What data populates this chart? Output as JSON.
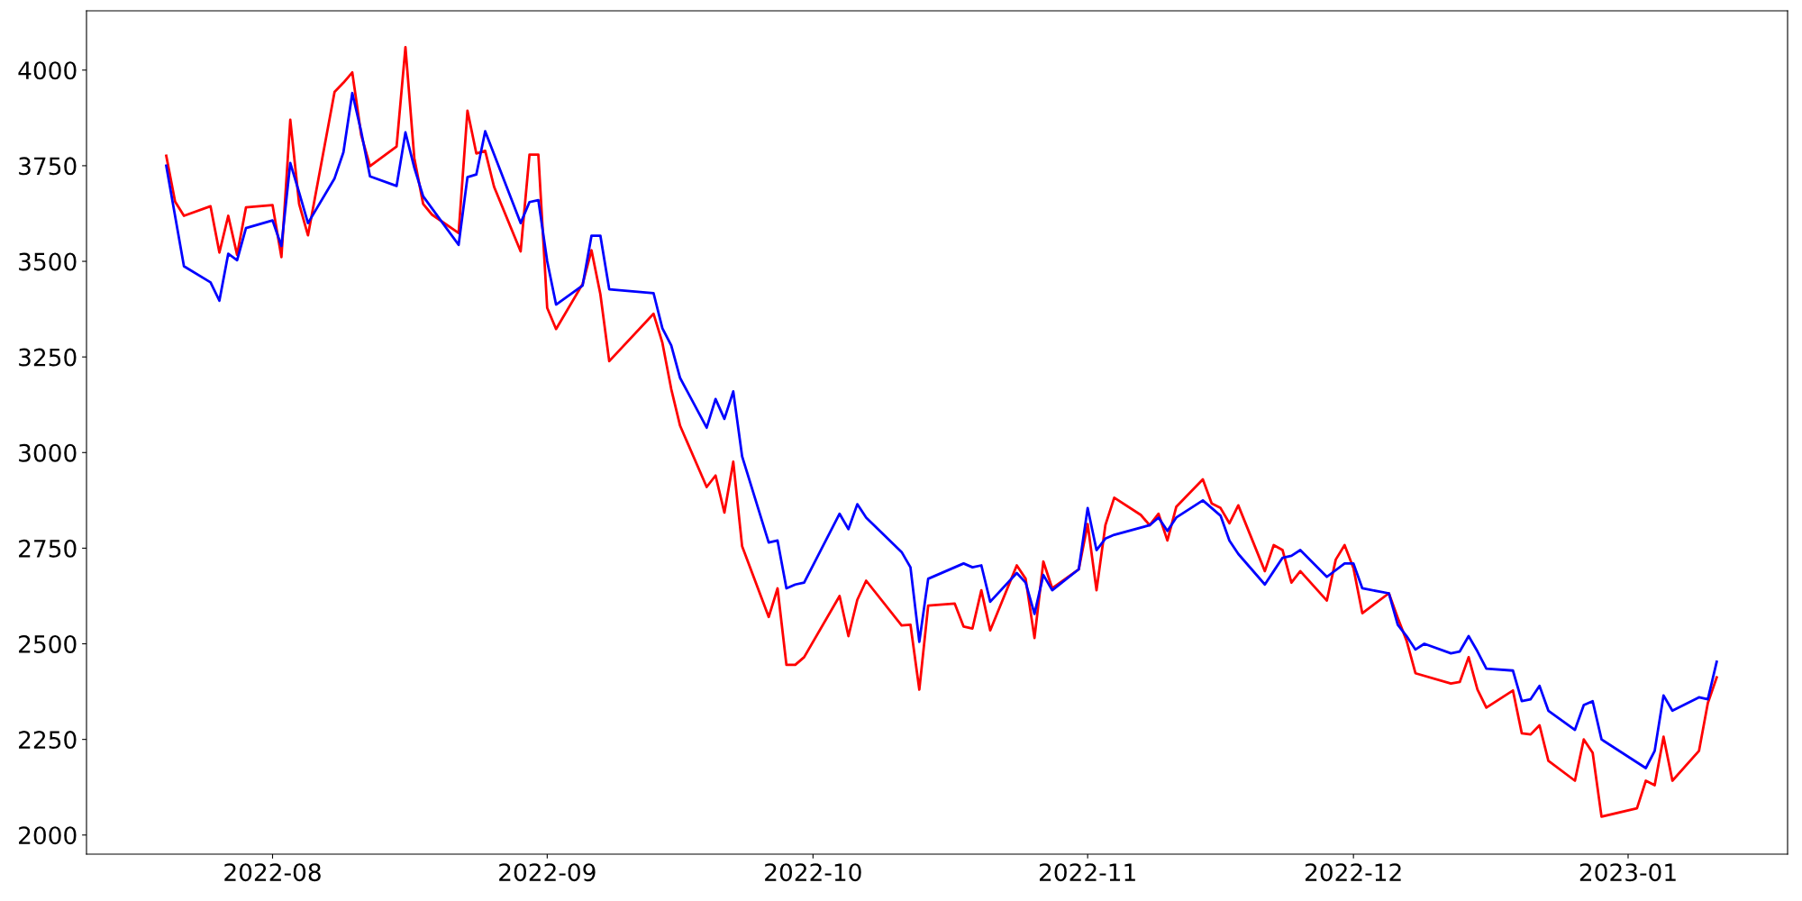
{
  "chart_data": {
    "type": "line",
    "xlim": [
      "2022-07-11",
      "2023-01-19"
    ],
    "xticks": [
      "2022-08",
      "2022-09",
      "2022-10",
      "2022-11",
      "2022-12",
      "2023-01"
    ],
    "ylim": [
      1950,
      4155
    ],
    "yticks": [
      2000,
      2250,
      2500,
      2750,
      3000,
      3250,
      3500,
      3750,
      4000
    ],
    "grid": false,
    "marker": "none",
    "line_style": "solid",
    "series": [
      {
        "color": "#ff0000",
        "x": [
          "2022-07-20",
          "2022-07-21",
          "2022-07-22",
          "2022-07-25",
          "2022-07-26",
          "2022-07-27",
          "2022-07-28",
          "2022-07-29",
          "2022-08-01",
          "2022-08-02",
          "2022-08-03",
          "2022-08-04",
          "2022-08-05",
          "2022-08-08",
          "2022-08-09",
          "2022-08-10",
          "2022-08-11",
          "2022-08-12",
          "2022-08-15",
          "2022-08-16",
          "2022-08-17",
          "2022-08-18",
          "2022-08-19",
          "2022-08-22",
          "2022-08-23",
          "2022-08-24",
          "2022-08-25",
          "2022-08-26",
          "2022-08-29",
          "2022-08-30",
          "2022-08-31",
          "2022-09-01",
          "2022-09-02",
          "2022-09-05",
          "2022-09-06",
          "2022-09-07",
          "2022-09-08",
          "2022-09-13",
          "2022-09-14",
          "2022-09-15",
          "2022-09-16",
          "2022-09-19",
          "2022-09-20",
          "2022-09-21",
          "2022-09-22",
          "2022-09-23",
          "2022-09-26",
          "2022-09-27",
          "2022-09-28",
          "2022-09-29",
          "2022-09-30",
          "2022-10-04",
          "2022-10-05",
          "2022-10-06",
          "2022-10-07",
          "2022-10-11",
          "2022-10-12",
          "2022-10-13",
          "2022-10-14",
          "2022-10-17",
          "2022-10-18",
          "2022-10-19",
          "2022-10-20",
          "2022-10-21",
          "2022-10-24",
          "2022-10-25",
          "2022-10-26",
          "2022-10-27",
          "2022-10-28",
          "2022-10-31",
          "2022-11-01",
          "2022-11-02",
          "2022-11-03",
          "2022-11-04",
          "2022-11-07",
          "2022-11-08",
          "2022-11-09",
          "2022-11-10",
          "2022-11-11",
          "2022-11-14",
          "2022-11-15",
          "2022-11-16",
          "2022-11-17",
          "2022-11-18",
          "2022-11-21",
          "2022-11-22",
          "2022-11-23",
          "2022-11-24",
          "2022-11-25",
          "2022-11-28",
          "2022-11-29",
          "2022-11-30",
          "2022-12-01",
          "2022-12-02",
          "2022-12-05",
          "2022-12-06",
          "2022-12-07",
          "2022-12-08",
          "2022-12-12",
          "2022-12-13",
          "2022-12-14",
          "2022-12-15",
          "2022-12-16",
          "2022-12-19",
          "2022-12-20",
          "2022-12-21",
          "2022-12-22",
          "2022-12-23",
          "2022-12-26",
          "2022-12-27",
          "2022-12-28",
          "2022-12-29",
          "2023-01-02",
          "2023-01-03",
          "2023-01-04",
          "2023-01-05",
          "2023-01-06",
          "2023-01-09",
          "2023-01-10",
          "2023-01-11"
        ],
        "values": [
          3776,
          3656,
          3619,
          3644,
          3523,
          3619,
          3517,
          3641,
          3647,
          3511,
          3870,
          3650,
          3568,
          3943,
          3967,
          3994,
          3831,
          3749,
          3800,
          4060,
          3770,
          3650,
          3622,
          3574,
          3894,
          3782,
          3789,
          3695,
          3526,
          3779,
          3779,
          3378,
          3323,
          3441,
          3529,
          3414,
          3239,
          3363,
          3287,
          3166,
          3070,
          2910,
          2940,
          2843,
          2976,
          2755,
          2570,
          2645,
          2445,
          2445,
          2465,
          2625,
          2520,
          2615,
          2665,
          2548,
          2550,
          2380,
          2600,
          2605,
          2545,
          2540,
          2640,
          2535,
          2705,
          2670,
          2515,
          2715,
          2645,
          2695,
          2813,
          2640,
          2810,
          2882,
          2837,
          2810,
          2840,
          2770,
          2858,
          2930,
          2867,
          2855,
          2815,
          2862,
          2690,
          2758,
          2745,
          2660,
          2690,
          2613,
          2720,
          2758,
          2698,
          2580,
          2632,
          2568,
          2508,
          2423,
          2396,
          2400,
          2465,
          2380,
          2333,
          2378,
          2266,
          2263,
          2287,
          2194,
          2142,
          2250,
          2215,
          2048,
          2070,
          2142,
          2130,
          2257,
          2142,
          2220,
          2345,
          2412
        ]
      },
      {
        "color": "#0000ff",
        "x": [
          "2022-07-20",
          "2022-07-22",
          "2022-07-25",
          "2022-07-26",
          "2022-07-27",
          "2022-07-28",
          "2022-07-29",
          "2022-08-01",
          "2022-08-02",
          "2022-08-03",
          "2022-08-04",
          "2022-08-05",
          "2022-08-08",
          "2022-08-09",
          "2022-08-10",
          "2022-08-11",
          "2022-08-12",
          "2022-08-15",
          "2022-08-16",
          "2022-08-17",
          "2022-08-18",
          "2022-08-22",
          "2022-08-23",
          "2022-08-24",
          "2022-08-25",
          "2022-08-29",
          "2022-08-30",
          "2022-08-31",
          "2022-09-01",
          "2022-09-02",
          "2022-09-05",
          "2022-09-06",
          "2022-09-07",
          "2022-09-08",
          "2022-09-13",
          "2022-09-14",
          "2022-09-15",
          "2022-09-16",
          "2022-09-19",
          "2022-09-20",
          "2022-09-21",
          "2022-09-22",
          "2022-09-23",
          "2022-09-26",
          "2022-09-27",
          "2022-09-28",
          "2022-09-29",
          "2022-09-30",
          "2022-10-04",
          "2022-10-05",
          "2022-10-06",
          "2022-10-07",
          "2022-10-11",
          "2022-10-12",
          "2022-10-13",
          "2022-10-14",
          "2022-10-18",
          "2022-10-19",
          "2022-10-20",
          "2022-10-21",
          "2022-10-24",
          "2022-10-25",
          "2022-10-26",
          "2022-10-27",
          "2022-10-28",
          "2022-10-31",
          "2022-11-01",
          "2022-11-02",
          "2022-11-03",
          "2022-11-04",
          "2022-11-08",
          "2022-11-09",
          "2022-11-10",
          "2022-11-11",
          "2022-11-14",
          "2022-11-16",
          "2022-11-17",
          "2022-11-18",
          "2022-11-21",
          "2022-11-22",
          "2022-11-23",
          "2022-11-24",
          "2022-11-25",
          "2022-11-28",
          "2022-11-30",
          "2022-12-01",
          "2022-12-02",
          "2022-12-05",
          "2022-12-06",
          "2022-12-07",
          "2022-12-08",
          "2022-12-09",
          "2022-12-12",
          "2022-12-13",
          "2022-12-14",
          "2022-12-15",
          "2022-12-16",
          "2022-12-19",
          "2022-12-20",
          "2022-12-21",
          "2022-12-22",
          "2022-12-23",
          "2022-12-26",
          "2022-12-27",
          "2022-12-28",
          "2022-12-29",
          "2023-01-03",
          "2023-01-04",
          "2023-01-05",
          "2023-01-06",
          "2023-01-09",
          "2023-01-10",
          "2023-01-11"
        ],
        "values": [
          3750,
          3487,
          3445,
          3397,
          3520,
          3503,
          3587,
          3607,
          3540,
          3757,
          3680,
          3600,
          3717,
          3785,
          3940,
          3840,
          3722,
          3697,
          3837,
          3745,
          3670,
          3543,
          3720,
          3727,
          3840,
          3600,
          3655,
          3660,
          3500,
          3387,
          3437,
          3567,
          3567,
          3427,
          3417,
          3325,
          3280,
          3195,
          3065,
          3140,
          3088,
          3160,
          2990,
          2765,
          2770,
          2645,
          2655,
          2660,
          2840,
          2800,
          2865,
          2830,
          2740,
          2700,
          2505,
          2670,
          2710,
          2700,
          2705,
          2610,
          2685,
          2660,
          2578,
          2680,
          2640,
          2695,
          2855,
          2745,
          2775,
          2785,
          2810,
          2830,
          2795,
          2830,
          2875,
          2835,
          2770,
          2735,
          2655,
          2690,
          2725,
          2730,
          2745,
          2675,
          2710,
          2710,
          2645,
          2632,
          2550,
          2520,
          2485,
          2500,
          2475,
          2480,
          2520,
          2480,
          2435,
          2430,
          2350,
          2355,
          2390,
          2325,
          2275,
          2340,
          2350,
          2250,
          2175,
          2220,
          2365,
          2325,
          2360,
          2355,
          2453
        ]
      }
    ]
  }
}
